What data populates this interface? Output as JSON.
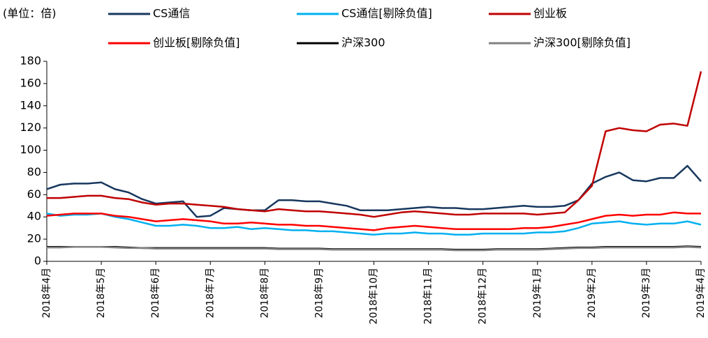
{
  "chart_data": {
    "type": "line",
    "title": "(单位：倍)",
    "x": [
      0,
      0.25,
      0.5,
      0.75,
      1,
      1.25,
      1.5,
      1.75,
      2,
      2.25,
      2.5,
      2.75,
      3,
      3.25,
      3.5,
      3.75,
      4,
      4.25,
      4.5,
      4.75,
      5,
      5.25,
      5.5,
      5.75,
      6,
      6.25,
      6.5,
      6.75,
      7,
      7.25,
      7.5,
      7.75,
      8,
      8.25,
      8.5,
      8.75,
      9,
      9.25,
      9.5,
      9.75,
      10,
      10.25,
      10.5,
      10.75,
      11,
      11.25,
      11.5,
      11.75,
      12
    ],
    "xlim": [
      0,
      12
    ],
    "xticks": [
      {
        "value": 0,
        "label": "2018年4月"
      },
      {
        "value": 1,
        "label": "2018年5月"
      },
      {
        "value": 2,
        "label": "2018年6月"
      },
      {
        "value": 3,
        "label": "2018年7月"
      },
      {
        "value": 4,
        "label": "2018年8月"
      },
      {
        "value": 5,
        "label": "2018年9月"
      },
      {
        "value": 6,
        "label": "2018年10月"
      },
      {
        "value": 7,
        "label": "2018年11月"
      },
      {
        "value": 8,
        "label": "2018年12月"
      },
      {
        "value": 9,
        "label": "2019年1月"
      },
      {
        "value": 10,
        "label": "2019年2月"
      },
      {
        "value": 11,
        "label": "2019年3月"
      },
      {
        "value": 12,
        "label": "2019年4月"
      }
    ],
    "ylim": [
      0,
      180
    ],
    "yticks": [
      0,
      20,
      40,
      60,
      80,
      100,
      120,
      140,
      160,
      180
    ],
    "grid": false,
    "series": [
      {
        "name": "CS通信",
        "color": "#17375e",
        "values": [
          65,
          69,
          70,
          70,
          71,
          65,
          62,
          56,
          52,
          53,
          54,
          40,
          41,
          48,
          47,
          46,
          46,
          55,
          55,
          54,
          54,
          52,
          50,
          46,
          46,
          46,
          47,
          48,
          49,
          48,
          48,
          47,
          47,
          48,
          49,
          50,
          49,
          49,
          50,
          55,
          70,
          76,
          80,
          73,
          72,
          75,
          75,
          86,
          72
        ]
      },
      {
        "name": "CS通信[剔除负值]",
        "color": "#00b0f0",
        "values": [
          43,
          41,
          42,
          42,
          43,
          40,
          38,
          35,
          32,
          32,
          33,
          32,
          30,
          30,
          31,
          29,
          30,
          29,
          28,
          28,
          27,
          27,
          26,
          25,
          24,
          25,
          25,
          26,
          25,
          25,
          24,
          24,
          25,
          25,
          25,
          25,
          26,
          26,
          27,
          30,
          34,
          35,
          36,
          34,
          33,
          34,
          34,
          36,
          33
        ]
      },
      {
        "name": "创业板",
        "color": "#c00000",
        "values": [
          57,
          57,
          58,
          59,
          59,
          57,
          56,
          53,
          51,
          52,
          52,
          51,
          50,
          49,
          47,
          46,
          45,
          47,
          46,
          45,
          45,
          44,
          43,
          42,
          40,
          42,
          44,
          45,
          44,
          43,
          42,
          42,
          43,
          43,
          43,
          43,
          42,
          43,
          44,
          55,
          68,
          117,
          120,
          118,
          117,
          123,
          124,
          122,
          171
        ]
      },
      {
        "name": "创业板[剔除负值]",
        "color": "#ff0000",
        "values": [
          41,
          42,
          43,
          43,
          43,
          41,
          40,
          38,
          36,
          37,
          38,
          37,
          36,
          34,
          34,
          35,
          34,
          33,
          33,
          32,
          32,
          31,
          30,
          29,
          28,
          30,
          31,
          32,
          31,
          30,
          29,
          29,
          29,
          29,
          29,
          30,
          30,
          31,
          33,
          35,
          38,
          41,
          42,
          41,
          42,
          42,
          44,
          43,
          43
        ]
      },
      {
        "name": "沪深300",
        "color": "#000000",
        "values": [
          13,
          13,
          13,
          13,
          13,
          13,
          12.5,
          12,
          12,
          12,
          12,
          12,
          12,
          12,
          12,
          12,
          12,
          11.5,
          11.5,
          11.5,
          11.5,
          11,
          11,
          11,
          11,
          11,
          11,
          11,
          11,
          11,
          10.5,
          10.5,
          10.5,
          11,
          11,
          11,
          11,
          11.5,
          12,
          12.5,
          12.5,
          13,
          13,
          13,
          13,
          13,
          13,
          13.5,
          13
        ]
      },
      {
        "name": "沪深300[剔除负值]",
        "color": "#808080",
        "values": [
          12.5,
          12.5,
          13,
          13,
          13,
          12.5,
          12,
          12,
          11.5,
          11.5,
          11.5,
          11.5,
          11.5,
          11.5,
          11.5,
          11.5,
          11.5,
          11,
          11,
          11,
          11,
          10.5,
          10.5,
          10.5,
          10.5,
          10.5,
          10.5,
          10.5,
          10.5,
          10.5,
          10,
          10,
          10,
          10.5,
          10.5,
          10.5,
          10.5,
          11,
          11.5,
          12,
          12,
          12.5,
          12.5,
          12.5,
          12.5,
          12.5,
          12.5,
          13,
          12.5
        ]
      }
    ]
  }
}
